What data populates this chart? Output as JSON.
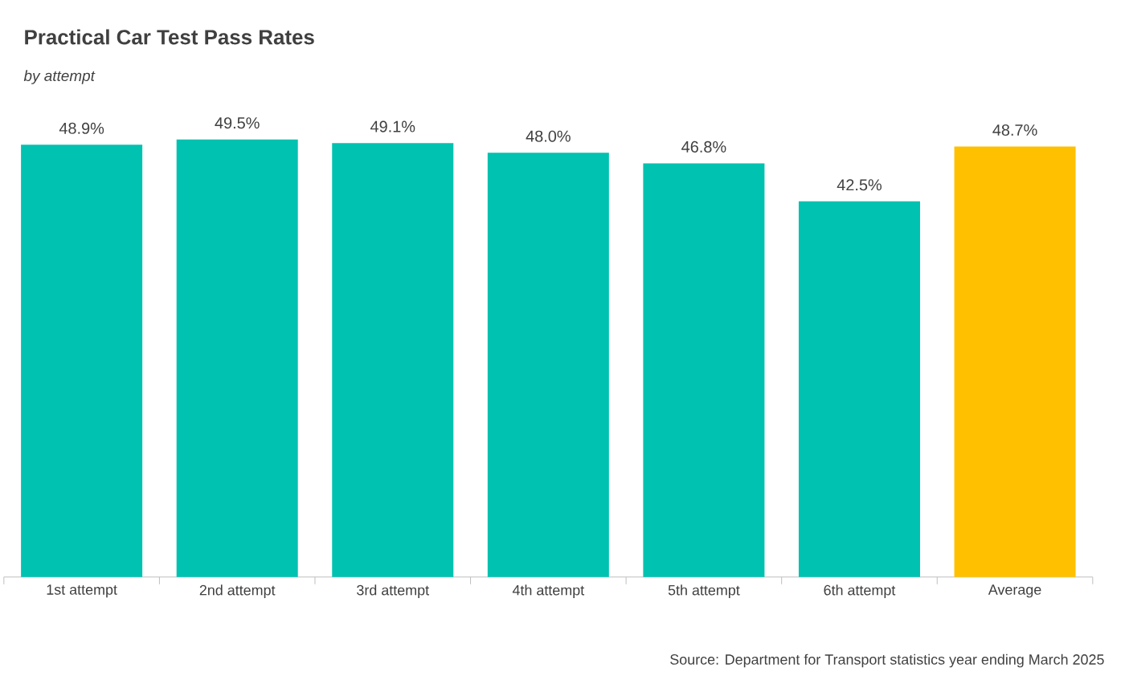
{
  "chart_data": {
    "type": "bar",
    "title": "Practical Car Test Pass Rates",
    "subtitle": "by attempt",
    "categories": [
      "1st attempt",
      "2nd attempt",
      "3rd attempt",
      "4th attempt",
      "5th attempt",
      "6th attempt",
      "Average"
    ],
    "values": [
      48.9,
      49.5,
      49.1,
      48.0,
      46.8,
      42.5,
      48.7
    ],
    "value_labels": [
      "48.9%",
      "49.5%",
      "49.1%",
      "48.0%",
      "46.8%",
      "42.5%",
      "48.7%"
    ],
    "colors": [
      "#00c2b0",
      "#00c2b0",
      "#00c2b0",
      "#00c2b0",
      "#00c2b0",
      "#00c2b0",
      "#ffc000"
    ],
    "annotations": [
      "Source: Department for Transport statistics year ending March 2025"
    ]
  }
}
